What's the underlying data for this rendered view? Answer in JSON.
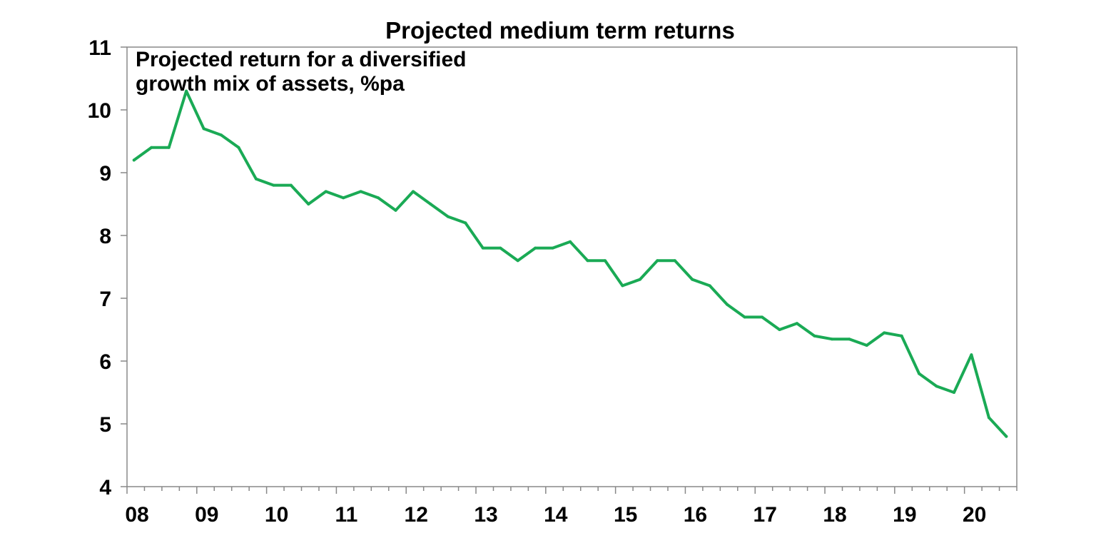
{
  "chart_data": {
    "type": "line",
    "title": "Projected medium term returns",
    "annotation": [
      "Projected return for a diversified",
      "growth mix of assets, %pa"
    ],
    "xlabel": "",
    "ylabel": "",
    "ylim": [
      4,
      11
    ],
    "yticks": [
      "4",
      "5",
      "6",
      "7",
      "8",
      "9",
      "10",
      "11"
    ],
    "xlim": [
      2008,
      2020.75
    ],
    "xticks": [
      "08",
      "09",
      "10",
      "11",
      "12",
      "13",
      "14",
      "15",
      "16",
      "17",
      "18",
      "19",
      "20"
    ],
    "grid": false,
    "line_color": "#1aaa55",
    "series": [
      {
        "name": "Projected return for a diversified growth mix of assets, %pa",
        "x": [
          2008.1,
          2008.35,
          2008.6,
          2008.85,
          2009.1,
          2009.35,
          2009.6,
          2009.85,
          2010.1,
          2010.35,
          2010.6,
          2010.85,
          2011.1,
          2011.35,
          2011.6,
          2011.85,
          2012.1,
          2012.35,
          2012.6,
          2012.85,
          2013.1,
          2013.35,
          2013.6,
          2013.85,
          2014.1,
          2014.35,
          2014.6,
          2014.85,
          2015.1,
          2015.35,
          2015.6,
          2015.85,
          2016.1,
          2016.35,
          2016.6,
          2016.85,
          2017.1,
          2017.35,
          2017.6,
          2017.85,
          2018.1,
          2018.35,
          2018.6,
          2018.85,
          2019.1,
          2019.35,
          2019.6,
          2019.85,
          2020.1,
          2020.35,
          2020.6
        ],
        "values": [
          9.2,
          9.4,
          9.4,
          10.3,
          9.7,
          9.6,
          9.4,
          8.9,
          8.8,
          8.8,
          8.5,
          8.7,
          8.6,
          8.7,
          8.6,
          8.4,
          8.7,
          8.5,
          8.3,
          8.2,
          7.8,
          7.8,
          7.6,
          7.8,
          7.8,
          7.9,
          7.6,
          7.6,
          7.2,
          7.3,
          7.6,
          7.6,
          7.3,
          7.2,
          6.9,
          6.7,
          6.7,
          6.5,
          6.6,
          6.4,
          6.35,
          6.35,
          6.25,
          6.45,
          6.4,
          5.8,
          5.6,
          5.5,
          6.1,
          5.1,
          4.8
        ]
      }
    ]
  }
}
